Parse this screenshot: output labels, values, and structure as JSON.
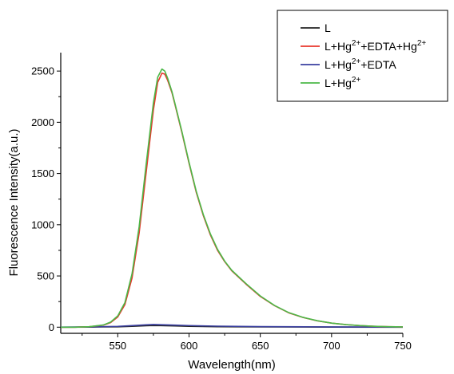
{
  "chart_data": {
    "type": "line",
    "xlabel": "Wavelength(nm)",
    "ylabel": "Fluorescence Intensity(a.u.)",
    "xlim": [
      510,
      750
    ],
    "ylim": [
      -60,
      2680
    ],
    "x_ticks": [
      550,
      600,
      650,
      700,
      750
    ],
    "y_ticks": [
      0,
      500,
      1000,
      1500,
      2000,
      2500
    ],
    "grid": false,
    "legend_position": "top-right",
    "series": [
      {
        "name": "L",
        "legend_base": "L",
        "legend_parts": [],
        "color": "#222222",
        "x": [
          510,
          530,
          550,
          560,
          570,
          575,
          580,
          590,
          600,
          620,
          650,
          700,
          750
        ],
        "y": [
          0,
          1,
          4,
          8,
          14,
          16,
          15,
          12,
          9,
          5,
          3,
          1,
          0
        ]
      },
      {
        "name": "L+Hg2++EDTA+Hg2+",
        "legend_base": "L+Hg",
        "legend_parts": [
          {
            "sup": "2+",
            "text": "+EDTA+Hg"
          },
          {
            "sup": "2+",
            "text": ""
          }
        ],
        "color": "#e8372c",
        "x": [
          510,
          520,
          530,
          540,
          545,
          550,
          555,
          560,
          565,
          570,
          575,
          578,
          581,
          583,
          585,
          588,
          590,
          595,
          600,
          605,
          610,
          615,
          620,
          625,
          630,
          640,
          650,
          660,
          670,
          680,
          690,
          700,
          710,
          720,
          730,
          740,
          750
        ],
        "y": [
          0,
          0,
          5,
          20,
          45,
          100,
          220,
          480,
          920,
          1520,
          2120,
          2390,
          2480,
          2470,
          2410,
          2290,
          2180,
          1900,
          1600,
          1320,
          1090,
          900,
          750,
          640,
          550,
          420,
          300,
          210,
          140,
          95,
          62,
          40,
          25,
          15,
          9,
          5,
          3
        ]
      },
      {
        "name": "L+Hg2++EDTA",
        "legend_base": "L+Hg",
        "legend_parts": [
          {
            "sup": "2+",
            "text": "+EDTA"
          }
        ],
        "color": "#3a3fa0",
        "x": [
          510,
          530,
          550,
          560,
          570,
          575,
          580,
          590,
          600,
          620,
          650,
          700,
          750
        ],
        "y": [
          1,
          3,
          8,
          15,
          23,
          26,
          24,
          20,
          16,
          10,
          6,
          3,
          1
        ]
      },
      {
        "name": "L+Hg2+",
        "legend_base": "L+Hg",
        "legend_parts": [
          {
            "sup": "2+",
            "text": ""
          }
        ],
        "color": "#4cb848",
        "x": [
          510,
          520,
          530,
          540,
          545,
          550,
          555,
          560,
          565,
          570,
          575,
          578,
          581,
          583,
          585,
          588,
          590,
          595,
          600,
          605,
          610,
          615,
          620,
          625,
          630,
          640,
          650,
          660,
          670,
          680,
          690,
          700,
          710,
          720,
          730,
          740,
          750
        ],
        "y": [
          0,
          0,
          5,
          22,
          50,
          110,
          240,
          520,
          980,
          1600,
          2190,
          2440,
          2520,
          2500,
          2430,
          2300,
          2190,
          1910,
          1610,
          1330,
          1100,
          910,
          760,
          645,
          555,
          425,
          305,
          212,
          142,
          96,
          63,
          40,
          25,
          15,
          9,
          5,
          3
        ]
      }
    ]
  }
}
